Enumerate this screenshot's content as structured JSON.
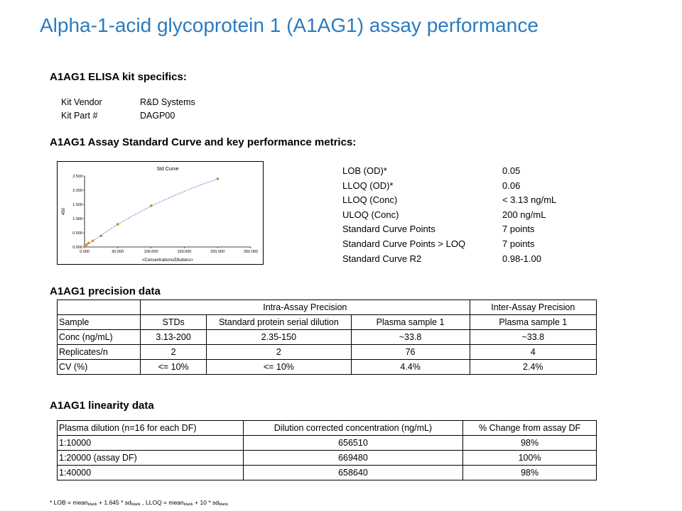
{
  "title": "Alpha-1-acid glycoprotein 1 (A1AG1) assay performance",
  "kit": {
    "heading": "A1AG1 ELISA kit specifics:",
    "rows": [
      {
        "label": "Kit Vendor",
        "value": "R&D Systems"
      },
      {
        "label": "Kit Part #",
        "value": "DAGP00"
      }
    ]
  },
  "curve_heading": "A1AG1 Assay Standard Curve and key performance metrics:",
  "metrics": [
    {
      "label": "LOB (OD)*",
      "value": "0.05"
    },
    {
      "label": "LLOQ (OD)*",
      "value": "0.06"
    },
    {
      "label": "LLOQ (Conc)",
      "value": "< 3.13 ng/mL"
    },
    {
      "label": "ULOQ (Conc)",
      "value": "200 ng/mL"
    },
    {
      "label": "Standard Curve Points",
      "value": "7 points"
    },
    {
      "label": "Standard Curve Points > LOQ",
      "value": "7 points"
    },
    {
      "label": "Standard Curve R2",
      "value": "0.98-1.00"
    }
  ],
  "chart_data": {
    "type": "scatter",
    "title": "Std Curve",
    "xlabel": "<Concentrations/Dilutions>",
    "ylabel": "450",
    "xlim": [
      0,
      250
    ],
    "ylim": [
      0,
      2.5
    ],
    "xticks": [
      "0.000",
      "50.000",
      "100.000",
      "150.000",
      "200.000",
      "250.000"
    ],
    "yticks": [
      "0.000",
      "0.500",
      "1.000",
      "1.500",
      "2.000",
      "2.500"
    ],
    "grid": false,
    "points": [
      {
        "x": 0,
        "y": 0.02
      },
      {
        "x": 3.13,
        "y": 0.08
      },
      {
        "x": 6.25,
        "y": 0.14
      },
      {
        "x": 12.5,
        "y": 0.22
      },
      {
        "x": 25,
        "y": 0.39
      },
      {
        "x": 50,
        "y": 0.8
      },
      {
        "x": 100,
        "y": 1.45
      },
      {
        "x": 200,
        "y": 2.4
      }
    ],
    "fit": [
      {
        "x": 0,
        "y": 0.0
      },
      {
        "x": 25,
        "y": 0.42
      },
      {
        "x": 50,
        "y": 0.8
      },
      {
        "x": 75,
        "y": 1.13
      },
      {
        "x": 100,
        "y": 1.44
      },
      {
        "x": 125,
        "y": 1.71
      },
      {
        "x": 150,
        "y": 1.96
      },
      {
        "x": 175,
        "y": 2.19
      },
      {
        "x": 200,
        "y": 2.39
      }
    ],
    "colors": {
      "point": "#d98c1a",
      "fit": "#4a5cc4"
    }
  },
  "precision": {
    "heading": "A1AG1 precision data",
    "group_headers": {
      "intra": "Intra-Assay Precision",
      "inter": "Inter-Assay Precision"
    },
    "columns": [
      "Sample",
      "STDs",
      "Standard protein serial dilution",
      "Plasma sample 1",
      "Plasma sample 1"
    ],
    "rows": [
      [
        "Conc (ng/mL)",
        "3.13-200",
        "2.35-150",
        "~33.8",
        "~33.8"
      ],
      [
        "Replicates/n",
        "2",
        "2",
        "76",
        "4"
      ],
      [
        "CV (%)",
        "<= 10%",
        "<= 10%",
        "4.4%",
        "2.4%"
      ]
    ]
  },
  "linearity": {
    "heading": "A1AG1 linearity data",
    "columns": [
      "Plasma dilution (n=16 for each DF)",
      "Dilution corrected concentration (ng/mL)",
      "% Change from assay DF"
    ],
    "rows": [
      [
        "1:10000",
        "656510",
        "98%"
      ],
      [
        "1:20000 (assay DF)",
        "669480",
        "100%"
      ],
      [
        "1:40000",
        "658640",
        "98%"
      ]
    ]
  },
  "footnote": {
    "p1": "* LOB = mean",
    "s1": "blank",
    "p2": " + 1.645 * sd",
    "s2": "blank",
    "p3": " , LLOQ = mean",
    "s3": "blank",
    "p4": " + 10 * sd",
    "s4": "blank"
  }
}
